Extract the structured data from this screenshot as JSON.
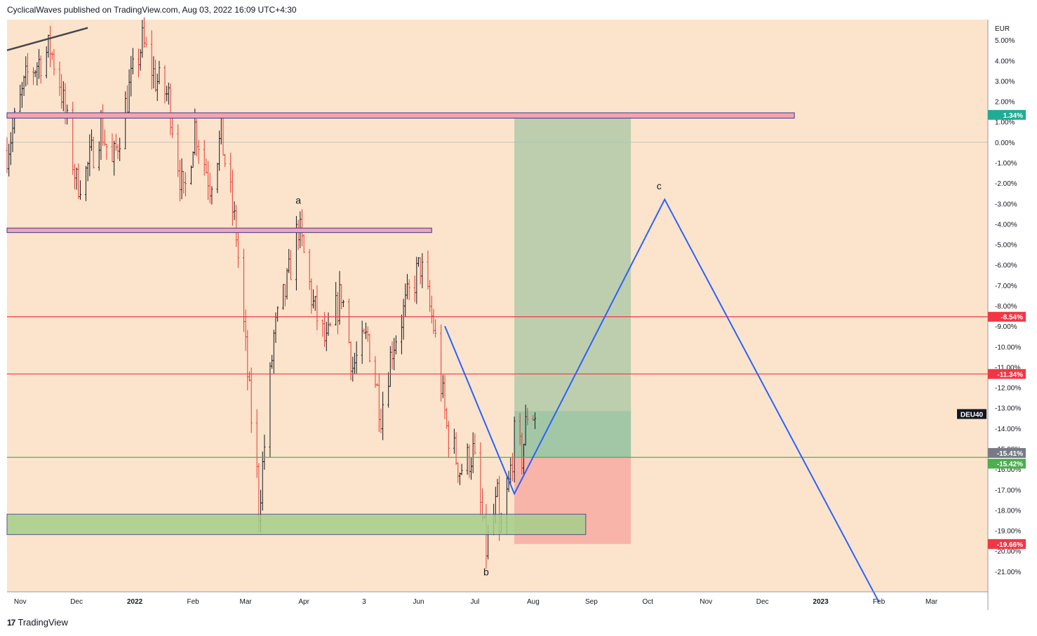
{
  "header": {
    "published": "CyclicalWaves published on TradingView.com, Aug 03, 2022 16:09 UTC+4:30"
  },
  "footer": {
    "logo_text": "TradingView",
    "logo_glyph": "17"
  },
  "colors": {
    "background": "#fbe4cb",
    "candle_up": "#131722",
    "candle_down": "#e53935",
    "resistance_line": "#f23645",
    "support_line": "#4caf50",
    "wave_line": "#2962ff",
    "target_zone": "#a8c7a4",
    "stop_zone": "#f7a7a0",
    "pink_zone": "#f4a3b3",
    "green_zone": "#a5cf8a"
  },
  "chart_data": {
    "type": "candlestick",
    "symbol": "DEU40",
    "currency": "EUR",
    "y_unit": "% change",
    "ylim": [
      -22,
      6
    ],
    "x_range": [
      "2021-10-25",
      "2023-03-31"
    ],
    "x_tick_labels": [
      "Nov",
      "Dec",
      "2022",
      "Feb",
      "Mar",
      "Apr",
      "3",
      "Jun",
      "Jul",
      "Aug",
      "Sep",
      "Oct",
      "Nov",
      "Dec",
      "2023",
      "Feb",
      "Mar"
    ],
    "y_tick_labels": [
      "5.00%",
      "4.00%",
      "3.00%",
      "2.00%",
      "1.00%",
      "0.00%",
      "-1.00%",
      "-2.00%",
      "-3.00%",
      "-4.00%",
      "-5.00%",
      "-6.00%",
      "-7.00%",
      "-8.00%",
      "-9.00%",
      "-10.00%",
      "-11.00%",
      "-12.00%",
      "-13.00%",
      "-14.00%",
      "-15.00%",
      "-16.00%",
      "-17.00%",
      "-18.00%",
      "-19.00%",
      "-20.00%",
      "-21.00%"
    ],
    "price_path": [
      [
        "2021-10-25",
        -0.4
      ],
      [
        "2021-11-05",
        3.3
      ],
      [
        "2021-11-17",
        4.6
      ],
      [
        "2021-11-22",
        3.0
      ],
      [
        "2021-12-01",
        -2.0
      ],
      [
        "2021-12-06",
        -1.5
      ],
      [
        "2021-12-14",
        0.8
      ],
      [
        "2021-12-20",
        -1.2
      ],
      [
        "2021-12-29",
        2.6
      ],
      [
        "2022-01-05",
        4.9
      ],
      [
        "2022-01-12",
        3.1
      ],
      [
        "2022-01-19",
        2.2
      ],
      [
        "2022-01-27",
        -2.8
      ],
      [
        "2022-02-02",
        0.8
      ],
      [
        "2022-02-10",
        -2.0
      ],
      [
        "2022-02-16",
        0.3
      ],
      [
        "2022-02-24",
        -4.5
      ],
      [
        "2022-03-03",
        -12.5
      ],
      [
        "2022-03-07",
        -16.3
      ],
      [
        "2022-03-08",
        -18.0
      ],
      [
        "2022-03-16",
        -9.5
      ],
      [
        "2022-03-23",
        -7.0
      ],
      [
        "2022-03-29",
        -4.1
      ],
      [
        "2022-04-06",
        -8.0
      ],
      [
        "2022-04-13",
        -10.0
      ],
      [
        "2022-04-21",
        -7.3
      ],
      [
        "2022-04-27",
        -11.0
      ],
      [
        "2022-05-05",
        -9.5
      ],
      [
        "2022-05-12",
        -13.2
      ],
      [
        "2022-05-18",
        -10.0
      ],
      [
        "2022-05-27",
        -7.5
      ],
      [
        "2022-06-02",
        -6.0
      ],
      [
        "2022-06-09",
        -9.0
      ],
      [
        "2022-06-16",
        -14.0
      ],
      [
        "2022-06-23",
        -16.0
      ],
      [
        "2022-06-30",
        -15.2
      ],
      [
        "2022-07-05",
        -18.5
      ],
      [
        "2022-07-07",
        -19.9
      ],
      [
        "2022-07-13",
        -17.5
      ],
      [
        "2022-07-14",
        -19.5
      ],
      [
        "2022-07-19",
        -16.8
      ],
      [
        "2022-07-22",
        -14.5
      ],
      [
        "2022-07-26",
        -15.4
      ],
      [
        "2022-07-29",
        -13.2
      ],
      [
        "2022-08-03",
        -13.3
      ]
    ],
    "wave_labels": [
      {
        "label": "a",
        "date": "2022-03-29",
        "value": -3.0
      },
      {
        "label": "b",
        "date": "2022-07-07",
        "value": -21.2
      },
      {
        "label": "c",
        "date": "2022-10-07",
        "value": -2.3
      }
    ],
    "wave_projection": [
      [
        "2022-06-15",
        -9.0
      ],
      [
        "2022-07-22",
        -17.2
      ],
      [
        "2022-10-10",
        -2.8
      ],
      [
        "2023-02-01",
        -22.5
      ]
    ],
    "horizontal_levels": [
      {
        "label": "1.34%",
        "value": 1.34,
        "kind": "zone-top"
      },
      {
        "label": "-8.54%",
        "value": -8.54,
        "kind": "resistance"
      },
      {
        "label": "-11.34%",
        "value": -11.34,
        "kind": "resistance"
      },
      {
        "label": "-15.41%",
        "value": -15.41,
        "kind": "current"
      },
      {
        "label": "-15.42%",
        "value": -15.42,
        "kind": "support"
      },
      {
        "label": "-19.66%",
        "value": -19.66,
        "kind": "stop"
      }
    ],
    "position": {
      "start": "2022-07-22",
      "end": "2022-09-22",
      "entry": -15.42,
      "target": 1.34,
      "stop": -19.66,
      "mid": -13.15
    },
    "zones": [
      {
        "kind": "pink",
        "start": "2021-10-25",
        "end": "2022-12-18",
        "top": 1.44,
        "bottom": 1.18
      },
      {
        "kind": "pink",
        "start": "2021-10-25",
        "end": "2022-06-08",
        "top": -4.2,
        "bottom": -4.42
      },
      {
        "kind": "green",
        "start": "2021-10-25",
        "end": "2022-08-29",
        "top": -18.2,
        "bottom": -19.2
      }
    ],
    "trendline": [
      [
        "2021-10-25",
        4.5
      ],
      [
        "2021-12-07",
        5.6
      ]
    ],
    "symbol_tag": {
      "label": "DEU40",
      "value": -13.3
    }
  }
}
